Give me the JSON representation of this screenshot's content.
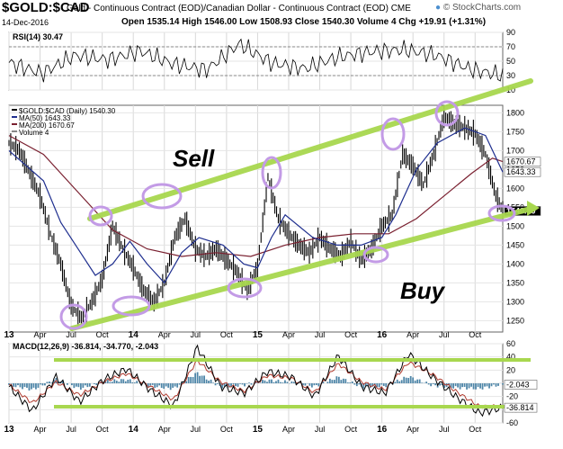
{
  "header": {
    "symbol": "$GOLD:$CAD",
    "description": "Gold - Continuous Contract (EOD)/Canadian Dollar - Continuous Contract (EOD) CME",
    "date": "14-Dec-2016",
    "stats": "Open 1535.14  High 1546.00  Low 1508.93  Close 1540.30  Volume 4  Chg +19.91 (+1.31%)",
    "brand": "© StockCharts.com",
    "brand_icon": "stockcharts-logo-icon"
  },
  "colors": {
    "price": "#000000",
    "ma50": "#1f2f8f",
    "ma200": "#7a2030",
    "trend": "#a8d74f",
    "highlight": "#c39be6",
    "rsi": "#000000",
    "macd": "#000000",
    "signal": "#b03a2e",
    "histogram": "#4f86a8"
  },
  "annotations": {
    "sell": "Sell",
    "buy": "Buy"
  },
  "chart_data": [
    {
      "type": "line",
      "title": "RSI(14) 30.47",
      "ylim": [
        10,
        90
      ],
      "yticks": [
        10,
        30,
        50,
        70,
        90
      ],
      "levels": [
        30,
        70
      ],
      "x": [
        "Apr 2013",
        "Jul 2013",
        "Oct 2013",
        "Jan 2014",
        "Apr 2014",
        "Jul 2014",
        "Oct 2014",
        "Jan 2015",
        "Apr 2015",
        "Jul 2015",
        "Oct 2015",
        "Jan 2016",
        "Apr 2016",
        "Jul 2016",
        "Oct 2016",
        "Dec 2016"
      ],
      "series": [
        {
          "values": [
            48,
            33,
            58,
            52,
            64,
            46,
            38,
            74,
            47,
            40,
            56,
            63,
            66,
            58,
            39,
            30
          ]
        }
      ]
    },
    {
      "type": "line",
      "title": "$GOLD:$CAD (Daily) 1540.30",
      "ylim": [
        1220,
        1820
      ],
      "yticks": [
        1250,
        1300,
        1350,
        1400,
        1450,
        1500,
        1550,
        1600,
        1650,
        1700,
        1750,
        1800
      ],
      "x_tick_labels": [
        "13",
        "Apr",
        "Jul",
        "Oct",
        "14",
        "Apr",
        "Jul",
        "Oct",
        "15",
        "Apr",
        "Jul",
        "Oct",
        "16",
        "Apr",
        "Jul",
        "Oct"
      ],
      "legend": [
        "$GOLD:$CAD (Daily) 1540.30",
        "MA(50) 1643.33",
        "MA(200) 1670.67",
        "Volume 4"
      ],
      "value_labels": [
        "1670.67",
        "1643.33",
        "1540.30"
      ],
      "series": [
        {
          "name": "$GOLD:$CAD",
          "values": [
            [
              0,
              1720
            ],
            [
              3,
              1700
            ],
            [
              6,
              1640
            ],
            [
              9,
              1580
            ],
            [
              12,
              1480
            ],
            [
              15,
              1400
            ],
            [
              18,
              1290
            ],
            [
              21,
              1255
            ],
            [
              24,
              1300
            ],
            [
              27,
              1360
            ],
            [
              30,
              1500
            ],
            [
              33,
              1440
            ],
            [
              36,
              1390
            ],
            [
              39,
              1330
            ],
            [
              42,
              1300
            ],
            [
              45,
              1350
            ],
            [
              48,
              1470
            ],
            [
              51,
              1520
            ],
            [
              54,
              1440
            ],
            [
              57,
              1420
            ],
            [
              60,
              1440
            ],
            [
              63,
              1410
            ],
            [
              66,
              1380
            ],
            [
              69,
              1330
            ],
            [
              72,
              1390
            ],
            [
              75,
              1630
            ],
            [
              78,
              1520
            ],
            [
              81,
              1480
            ],
            [
              84,
              1450
            ],
            [
              87,
              1430
            ],
            [
              90,
              1470
            ],
            [
              93,
              1440
            ],
            [
              96,
              1420
            ],
            [
              99,
              1460
            ],
            [
              102,
              1410
            ],
            [
              105,
              1440
            ],
            [
              108,
              1500
            ],
            [
              111,
              1530
            ],
            [
              114,
              1690
            ],
            [
              117,
              1660
            ],
            [
              120,
              1610
            ],
            [
              123,
              1690
            ],
            [
              126,
              1790
            ],
            [
              129,
              1770
            ],
            [
              132,
              1760
            ],
            [
              135,
              1745
            ],
            [
              138,
              1690
            ],
            [
              141,
              1580
            ],
            [
              143,
              1540
            ]
          ]
        },
        {
          "name": "MA(50)",
          "values": [
            [
              0,
              1700
            ],
            [
              10,
              1620
            ],
            [
              15,
              1510
            ],
            [
              20,
              1440
            ],
            [
              25,
              1370
            ],
            [
              30,
              1400
            ],
            [
              35,
              1460
            ],
            [
              40,
              1400
            ],
            [
              45,
              1350
            ],
            [
              50,
              1430
            ],
            [
              55,
              1470
            ],
            [
              62,
              1450
            ],
            [
              68,
              1400
            ],
            [
              72,
              1390
            ],
            [
              76,
              1470
            ],
            [
              80,
              1530
            ],
            [
              88,
              1470
            ],
            [
              95,
              1450
            ],
            [
              102,
              1450
            ],
            [
              108,
              1470
            ],
            [
              112,
              1530
            ],
            [
              118,
              1650
            ],
            [
              124,
              1720
            ],
            [
              132,
              1760
            ],
            [
              138,
              1740
            ],
            [
              143,
              1643
            ]
          ]
        },
        {
          "name": "MA(200)",
          "values": [
            [
              0,
              1740
            ],
            [
              10,
              1690
            ],
            [
              20,
              1590
            ],
            [
              30,
              1490
            ],
            [
              40,
              1440
            ],
            [
              50,
              1420
            ],
            [
              60,
              1430
            ],
            [
              70,
              1420
            ],
            [
              80,
              1450
            ],
            [
              90,
              1470
            ],
            [
              100,
              1480
            ],
            [
              110,
              1480
            ],
            [
              118,
              1520
            ],
            [
              126,
              1580
            ],
            [
              134,
              1640
            ],
            [
              140,
              1680
            ],
            [
              143,
              1671
            ]
          ]
        }
      ]
    },
    {
      "type": "line",
      "title": "MACD(12,26,9) -36.814, -34.770, -2.043",
      "ylim": [
        -60,
        60
      ],
      "yticks": [
        -60,
        -40,
        -20,
        0,
        20,
        40,
        60
      ],
      "value_labels": [
        "-2.043",
        "-36.814"
      ],
      "series": [
        {
          "name": "MACD",
          "values": [
            -5,
            -42,
            10,
            -28,
            5,
            22,
            -10,
            -35,
            55,
            -5,
            -15,
            18,
            10,
            -20,
            42,
            -5,
            -15,
            45,
            10,
            -20,
            -45,
            -37
          ]
        },
        {
          "name": "Signal",
          "values": [
            -2,
            -30,
            2,
            -18,
            2,
            15,
            -5,
            -25,
            35,
            2,
            -12,
            12,
            8,
            -14,
            30,
            2,
            -10,
            32,
            14,
            -12,
            -35,
            -35
          ]
        }
      ]
    }
  ]
}
